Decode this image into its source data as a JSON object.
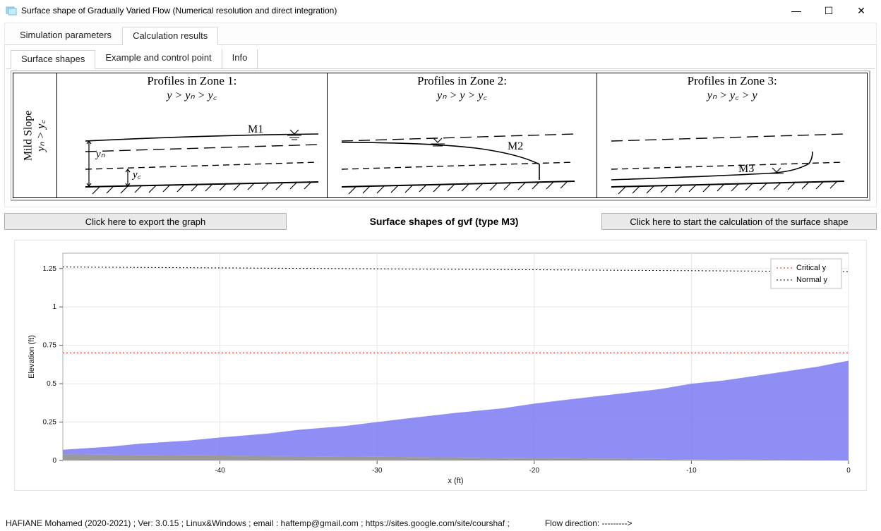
{
  "window": {
    "title": "Surface shape of Gradually Varied Flow (Numerical resolution and direct integration)"
  },
  "tabs_main": {
    "sim_params": "Simulation parameters",
    "calc_results": "Calculation results"
  },
  "tabs_sub": {
    "surface_shapes": "Surface shapes",
    "example_cp": "Example and control point",
    "info": "Info"
  },
  "zone_figure": {
    "slope_label_line1": "Mild Slope",
    "slope_label_line2": "yₙ > y꜀",
    "zone1_title": "Profiles in Zone 1:",
    "zone1_eq": "y > yₙ > y꜀",
    "zone2_title": "Profiles in Zone 2:",
    "zone2_eq": "yₙ > y > y꜀",
    "zone3_title": "Profiles in Zone 3:",
    "zone3_eq": "yₙ > y꜀ > y",
    "m1": "M1",
    "m2": "M2",
    "m3": "M3",
    "yn": "yₙ",
    "yc": "y꜀"
  },
  "actions": {
    "export_label": "Click here to export the graph",
    "center_label": "Surface shapes of gvf (type M3)",
    "calc_label": "Click here to start the calculation of the surface shape"
  },
  "chart": {
    "type": "area-line",
    "xlabel": "x (ft)",
    "ylabel": "Elevation (ft)",
    "label_fontsize": 11,
    "tick_fontsize": 10,
    "background_color": "#ffffff",
    "grid_color": "#e6e6e6",
    "plot_bg": "#ffffff",
    "xlim": [
      -50,
      0
    ],
    "ylim": [
      0,
      1.35
    ],
    "xticks": [
      -40,
      -30,
      -20,
      -10,
      0
    ],
    "yticks": [
      0,
      0.25,
      0.5,
      0.75,
      1,
      1.25
    ],
    "series_critical": {
      "label": "Critical y",
      "color": "#d61a1a",
      "style": "dotted",
      "y": 0.7
    },
    "series_normal": {
      "label": "Normal y",
      "color": "#000000",
      "style": "dotted",
      "x_vals": [
        -50,
        0
      ],
      "y_vals": [
        1.26,
        1.23
      ]
    },
    "series_flow": {
      "fill_color": "#7a7af2",
      "fill_opacity": 0.85,
      "points": [
        [
          -50,
          0.07
        ],
        [
          -47,
          0.09
        ],
        [
          -45,
          0.11
        ],
        [
          -42,
          0.13
        ],
        [
          -40,
          0.15
        ],
        [
          -37,
          0.175
        ],
        [
          -35,
          0.2
        ],
        [
          -32,
          0.225
        ],
        [
          -30,
          0.25
        ],
        [
          -28,
          0.275
        ],
        [
          -25,
          0.31
        ],
        [
          -22,
          0.34
        ],
        [
          -20,
          0.37
        ],
        [
          -18,
          0.395
        ],
        [
          -15,
          0.43
        ],
        [
          -12,
          0.465
        ],
        [
          -10,
          0.5
        ],
        [
          -8,
          0.52
        ],
        [
          -6,
          0.55
        ],
        [
          -4,
          0.58
        ],
        [
          -3,
          0.595
        ],
        [
          -2,
          0.61
        ],
        [
          -1,
          0.63
        ],
        [
          0,
          0.65
        ]
      ]
    },
    "series_bed": {
      "fill_color": "#9a9a9a",
      "points": [
        [
          -50,
          0.04
        ],
        [
          -40,
          0.032
        ],
        [
          -30,
          0.024
        ],
        [
          -20,
          0.016
        ],
        [
          -10,
          0.008
        ],
        [
          0,
          0.0
        ]
      ]
    },
    "legend": {
      "border_color": "#bcbcbc",
      "bg": "#ffffff",
      "items": [
        "Critical y",
        "Normal y"
      ]
    }
  },
  "status": {
    "left": "HAFIANE Mohamed (2020-2021) ; Ver: 3.0.15 ; Linux&Windows ; email : haftemp@gmail.com ; https://sites.google.com/site/courshaf      ;",
    "right": "Flow direction:  --------->"
  }
}
